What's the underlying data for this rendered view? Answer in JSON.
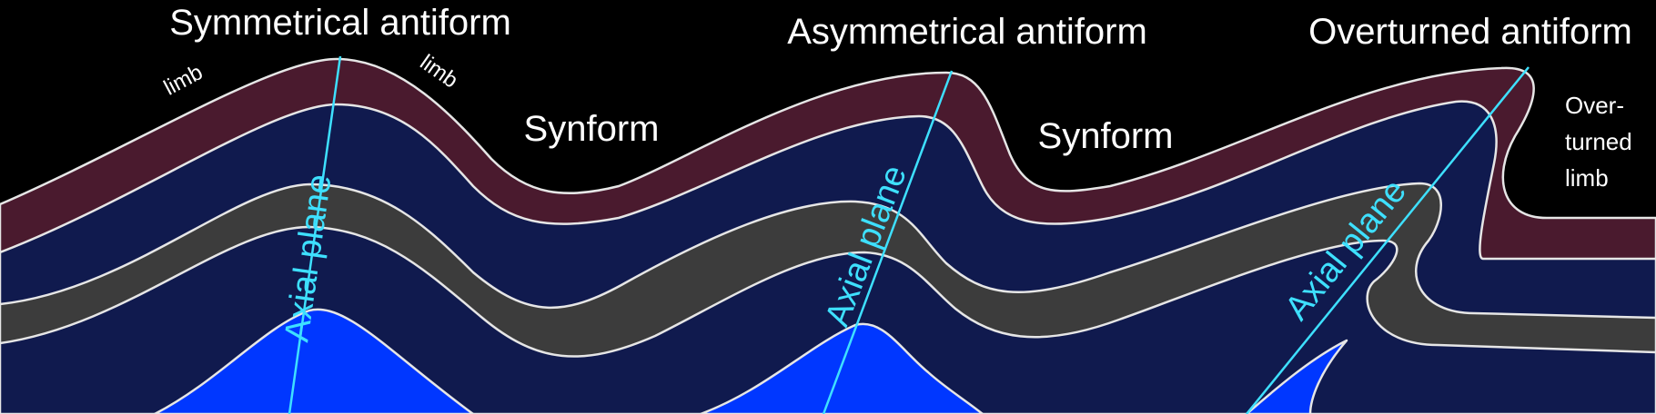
{
  "titles": {
    "symmetrical": "Symmetrical antiform",
    "asymmetrical": "Asymmetrical antiform",
    "overturned": "Overturned antiform"
  },
  "synforms": [
    "Synform",
    "Synform"
  ],
  "limb_labels": [
    "limb",
    "limb"
  ],
  "overturned_limb": [
    "Over-",
    "turned",
    "limb"
  ],
  "axial_plane_labels": [
    "Axial plane",
    "Axial plane",
    "Axial plane"
  ],
  "colors": {
    "background": "#000000",
    "top_layer": "#4a1a2e",
    "dark_navy": "#101a4e",
    "grey_layer": "#3c3c3c",
    "bright_blue": "#0037ff",
    "axial_plane": "#3ee0ff",
    "outline": "#e6e6e6",
    "text": "#ffffff"
  }
}
